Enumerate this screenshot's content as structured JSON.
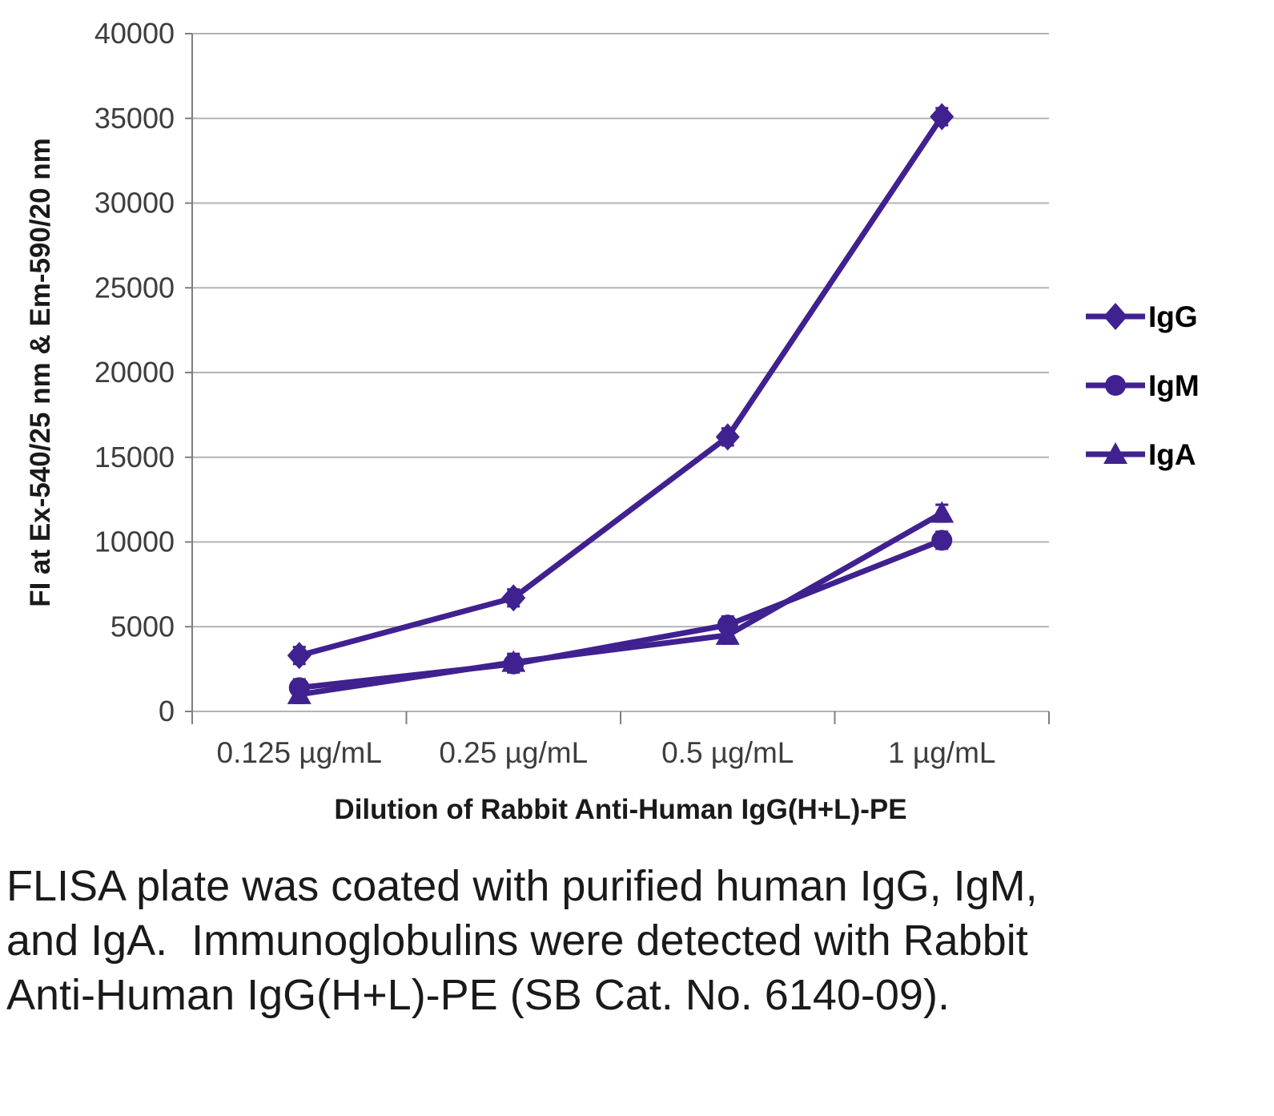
{
  "caption": "FLISA plate was coated with purified human IgG, IgM, and IgA.  Immunoglobulins were detected with Rabbit Anti-Human IgG(H+L)-PE (SB Cat. No. 6140-09).",
  "chart_data": {
    "type": "line",
    "title": "",
    "xlabel": "Dilution of Rabbit Anti-Human IgG(H+L)-PE",
    "ylabel": "FI at Ex-540/25 nm & Em-590/20 nm",
    "categories": [
      "0.125 µg/mL",
      "0.25 µg/mL",
      "0.5 µg/mL",
      "1 µg/mL"
    ],
    "ylim": [
      0,
      40000
    ],
    "ytick_step": 5000,
    "grid": true,
    "legend_position": "right",
    "line_color": "#402190",
    "error_bar_value": 500,
    "series": [
      {
        "name": "IgG",
        "marker": "diamond",
        "values": [
          3300,
          6700,
          16200,
          35100
        ]
      },
      {
        "name": "IgM",
        "marker": "circle",
        "values": [
          1400,
          2800,
          5100,
          10100
        ]
      },
      {
        "name": "IgA",
        "marker": "triangle",
        "values": [
          1000,
          2900,
          4500,
          11700
        ]
      }
    ]
  }
}
